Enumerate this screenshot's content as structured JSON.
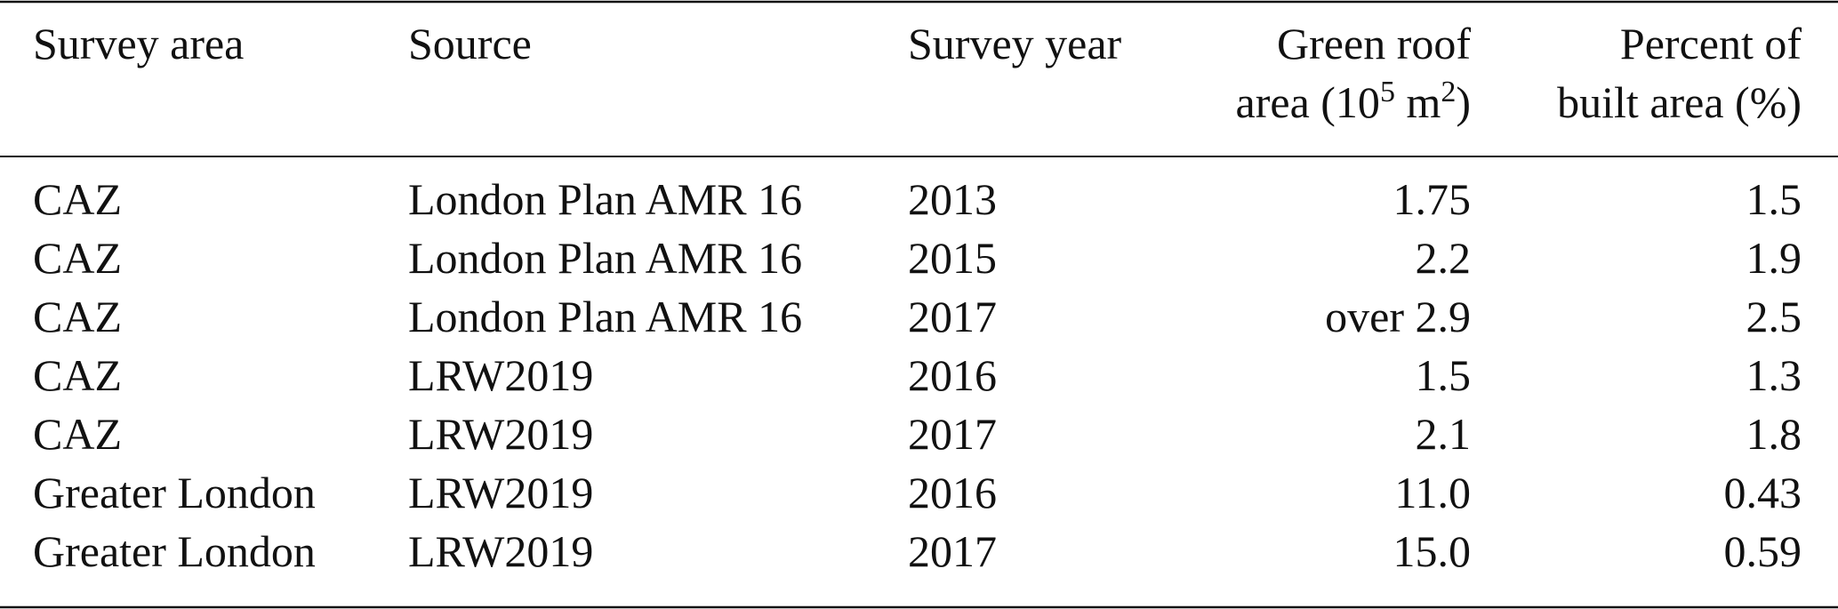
{
  "table": {
    "header": [
      [
        [
          "Survey area"
        ]
      ],
      [
        [
          "Source"
        ]
      ],
      [
        [
          "Survey year"
        ]
      ],
      [
        [
          "Green roof"
        ],
        [
          "area (10",
          {
            "sup": "5"
          },
          " m",
          {
            "sup": "2"
          },
          ")"
        ]
      ],
      [
        [
          "Percent of"
        ],
        [
          "built area (%)"
        ]
      ]
    ],
    "rows": [
      [
        "CAZ",
        "London Plan AMR 16",
        "2013",
        "1.75",
        "1.5"
      ],
      [
        "CAZ",
        "London Plan AMR 16",
        "2015",
        "2.2",
        "1.9"
      ],
      [
        "CAZ",
        "London Plan AMR 16",
        "2017",
        "over 2.9",
        "2.5"
      ],
      [
        "CAZ",
        "LRW2019",
        "2016",
        "1.5",
        "1.3"
      ],
      [
        "CAZ",
        "LRW2019",
        "2017",
        "2.1",
        "1.8"
      ],
      [
        "Greater London",
        "LRW2019",
        "2016",
        "11.0",
        "0.43"
      ],
      [
        "Greater London",
        "LRW2019",
        "2017",
        "15.0",
        "0.59"
      ]
    ]
  }
}
